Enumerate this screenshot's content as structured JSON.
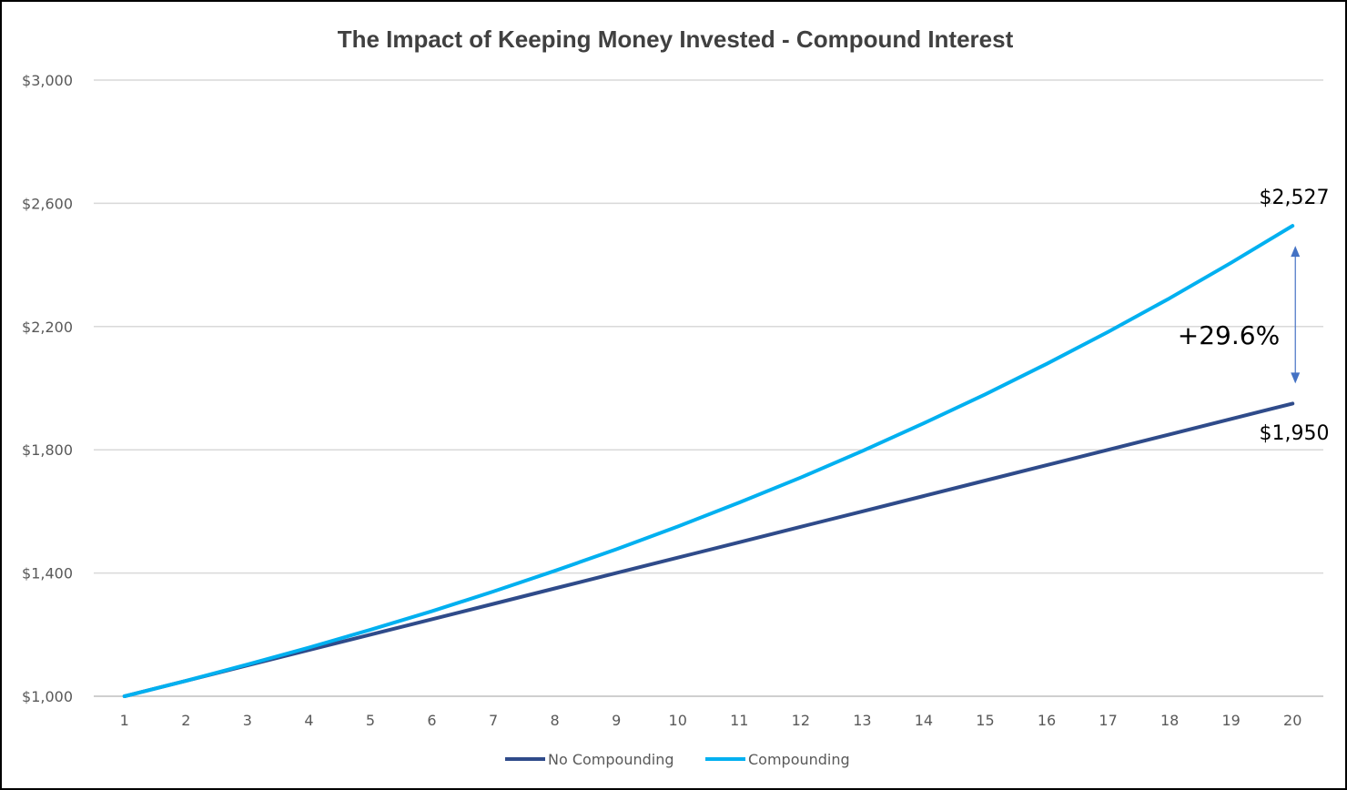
{
  "chart_data": {
    "type": "line",
    "title": "The Impact of Keeping Money Invested - Compound Interest",
    "xlabel": "",
    "ylabel": "",
    "x": [
      1,
      2,
      3,
      4,
      5,
      6,
      7,
      8,
      9,
      10,
      11,
      12,
      13,
      14,
      15,
      16,
      17,
      18,
      19,
      20
    ],
    "y_tick_labels": [
      "$1,000",
      "$1,400",
      "$1,800",
      "$2,200",
      "$2,600",
      "$3,000"
    ],
    "y_ticks": [
      1000,
      1400,
      1800,
      2200,
      2600,
      3000
    ],
    "ylim": [
      1000,
      3000
    ],
    "grid": true,
    "legend_position": "bottom",
    "series": [
      {
        "name": "No Compounding",
        "color": "#2F4B8A",
        "values": [
          1000,
          1050,
          1100,
          1150,
          1200,
          1250,
          1300,
          1350,
          1400,
          1450,
          1500,
          1550,
          1600,
          1650,
          1700,
          1750,
          1800,
          1850,
          1900,
          1950
        ]
      },
      {
        "name": "Compounding",
        "color": "#00B0F0",
        "values": [
          1000,
          1050,
          1103,
          1158,
          1216,
          1276,
          1340,
          1407,
          1477,
          1551,
          1629,
          1710,
          1796,
          1886,
          1980,
          2079,
          2183,
          2292,
          2407,
          2527
        ]
      }
    ],
    "annotations": {
      "compounding_end_label": "$2,527",
      "no_compounding_end_label": "$1,950",
      "difference_label": "+29.6%",
      "arrow_color": "#4472C4"
    }
  }
}
